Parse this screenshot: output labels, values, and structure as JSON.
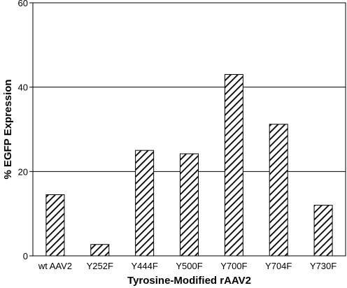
{
  "chart_data": {
    "type": "bar",
    "categories": [
      "wt AAV2",
      "Y252F",
      "Y444F",
      "Y500F",
      "Y700F",
      "Y704F",
      "Y730F"
    ],
    "values": [
      14.5,
      2.7,
      25,
      24.2,
      43,
      31.2,
      12
    ],
    "title": "",
    "xlabel": "Tyrosine-Modified rAAV2",
    "ylabel": "% EGFP Expression",
    "ylim": [
      0,
      60
    ],
    "yticks": [
      0,
      20,
      40,
      60
    ],
    "grid": true,
    "bar_fill": "diagonal-hatch",
    "bar_color": "#000000",
    "legend": "none"
  }
}
